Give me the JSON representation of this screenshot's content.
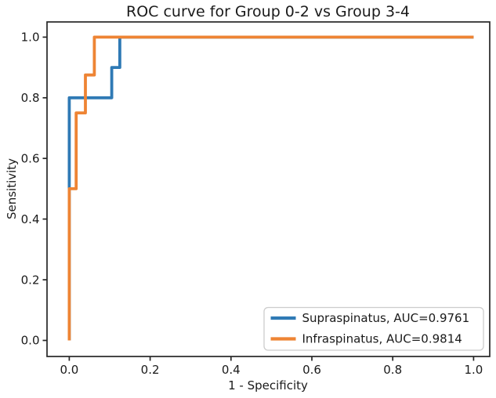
{
  "chart_data": {
    "type": "line",
    "subtype": "roc-step-curve",
    "title": "ROC curve for Group 0-2 vs Group 3-4",
    "xlabel": "1 - Specificity",
    "ylabel": "Sensitivity",
    "xlim": [
      -0.055,
      1.04
    ],
    "ylim": [
      -0.053,
      1.05
    ],
    "x_ticks": [
      0.0,
      0.2,
      0.4,
      0.6,
      0.8,
      1.0
    ],
    "y_ticks": [
      0.0,
      0.2,
      0.4,
      0.6,
      0.8,
      1.0
    ],
    "x_tick_labels": [
      "0.0",
      "0.2",
      "0.4",
      "0.6",
      "0.8",
      "1.0"
    ],
    "y_tick_labels": [
      "0.0",
      "0.2",
      "0.4",
      "0.6",
      "0.8",
      "1.0"
    ],
    "grid": false,
    "background_color": "#ffffff",
    "axis_color": "#262626",
    "text_color": "#1a1a1a",
    "line_width": 3.8,
    "legend": {
      "position": "lower right",
      "border_color": "#cccccc",
      "labels": [
        "Supraspinatus, AUC=0.9761",
        "Infraspinatus, AUC=0.9814"
      ]
    },
    "series": [
      {
        "name": "Supraspinatus",
        "auc": "0.9761",
        "label": "Supraspinatus, AUC=0.9761",
        "color": "#2f7ab5",
        "x": [
          0,
          0,
          0.105,
          0.105,
          0.125,
          0.125,
          1.0
        ],
        "y": [
          0,
          0.8,
          0.8,
          0.9,
          0.9,
          1.0,
          1.0
        ]
      },
      {
        "name": "Infraspinatus",
        "auc": "0.9814",
        "label": "Infraspinatus, AUC=0.9814",
        "color": "#ee8434",
        "x": [
          0,
          0,
          0.017,
          0.017,
          0.04,
          0.04,
          0.062,
          0.062,
          1.0
        ],
        "y": [
          0,
          0.5,
          0.5,
          0.75,
          0.75,
          0.875,
          0.875,
          1.0,
          1.0
        ]
      }
    ]
  }
}
